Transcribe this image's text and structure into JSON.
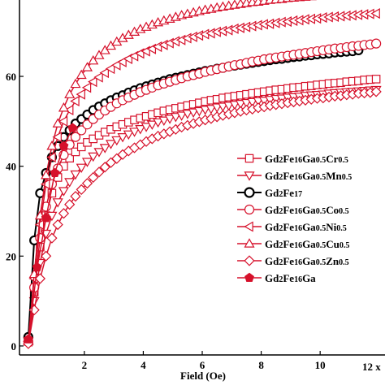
{
  "chart_data": {
    "type": "line",
    "title": "",
    "xlabel": "Field (Oe)",
    "x_multiplier_label": "12 x",
    "ylabel": "",
    "xlim": [
      -0.2,
      12.2
    ],
    "ylim": [
      -2,
      77
    ],
    "xticks": [
      2,
      4,
      6,
      8,
      10
    ],
    "yticks": [
      0,
      20,
      40,
      60
    ],
    "grid": false,
    "legend_position": "right",
    "colors": {
      "red": "#d6112b",
      "black": "#000000"
    },
    "series": [
      {
        "name": "Gd2Fe16Ga0.5Cr0.5",
        "legend": [
          [
            "Gd",
            ""
          ],
          [
            "2",
            "sub"
          ],
          [
            "Fe",
            ""
          ],
          [
            "16",
            "sub"
          ],
          [
            "Ga",
            ""
          ],
          [
            "0.5",
            "sub"
          ],
          [
            "Cr",
            ""
          ],
          [
            "0.5",
            "sub"
          ]
        ],
        "marker": "square",
        "color": "#d6112b",
        "filled": false,
        "x": [
          0.1,
          0.3,
          0.5,
          0.7,
          0.9,
          1.1,
          1.3,
          1.5,
          1.7,
          1.9,
          2.1,
          2.3,
          2.5,
          2.7,
          2.9,
          3.1,
          3.3,
          3.5,
          3.7,
          3.9,
          4.1,
          4.3,
          4.5,
          4.7,
          4.9,
          5.1,
          5.3,
          5.5,
          5.7,
          5.9,
          6.1,
          6.3,
          6.5,
          6.7,
          6.9,
          7.1,
          7.3,
          7.5,
          7.7,
          7.9,
          8.1,
          8.3,
          8.5,
          8.7,
          8.9,
          9.1,
          9.3,
          9.5,
          9.7,
          9.9,
          10.1,
          10.3,
          10.5,
          10.7,
          10.9,
          11.1,
          11.3,
          11.5,
          11.7,
          11.9
        ],
        "y": [
          1,
          12,
          22,
          29,
          34,
          37.5,
          40,
          41.8,
          43.2,
          44.3,
          45.3,
          46.1,
          46.9,
          47.6,
          48.2,
          48.8,
          49.3,
          49.8,
          50.3,
          50.7,
          51.1,
          51.5,
          51.9,
          52.3,
          52.6,
          52.9,
          53.2,
          53.5,
          53.8,
          54.1,
          54.4,
          54.7,
          54.9,
          55.2,
          55.4,
          55.6,
          55.8,
          56,
          56.2,
          56.4,
          56.6,
          56.8,
          57,
          57.1,
          57.3,
          57.5,
          57.6,
          57.8,
          57.9,
          58.1,
          58.2,
          58.4,
          58.5,
          58.6,
          58.8,
          58.9,
          59,
          59.2,
          59.3,
          59.4
        ]
      },
      {
        "name": "Gd2Fe16Ga0.5Mn0.5",
        "legend": [
          [
            "Gd",
            ""
          ],
          [
            "2",
            "sub"
          ],
          [
            "Fe",
            ""
          ],
          [
            "16",
            "sub"
          ],
          [
            "Ga",
            ""
          ],
          [
            "0.5",
            "sub"
          ],
          [
            "Mn",
            ""
          ],
          [
            "0.5",
            "sub"
          ]
        ],
        "marker": "triangle-down",
        "color": "#d6112b",
        "filled": false,
        "x": [
          0.1,
          0.3,
          0.5,
          0.7,
          0.9,
          1.1,
          1.3,
          1.5,
          1.7,
          1.9,
          2.1,
          2.3,
          2.5,
          2.7,
          2.9,
          3.1,
          3.3,
          3.5,
          3.7,
          3.9,
          4.1,
          4.3,
          4.5,
          4.7,
          4.9,
          5.1,
          5.3,
          5.5,
          5.7,
          5.9,
          6.1,
          6.3,
          6.5,
          6.7,
          6.9,
          7.1,
          7.3,
          7.5,
          7.7,
          7.9,
          8.1,
          8.3,
          8.5,
          8.7,
          8.9,
          9.1,
          9.3,
          9.5,
          9.7,
          9.9,
          10.1,
          10.3,
          10.5,
          10.7,
          10.9,
          11.1,
          11.3,
          11.5,
          11.7,
          11.9
        ],
        "y": [
          1,
          10,
          18.5,
          25,
          29,
          32,
          34.5,
          36.5,
          38.2,
          39.7,
          41,
          42.2,
          43.2,
          44.1,
          45,
          45.8,
          46.5,
          47.1,
          47.7,
          48.3,
          48.8,
          49.3,
          49.8,
          50.2,
          50.6,
          51,
          51.3,
          51.7,
          52,
          52.3,
          52.6,
          52.8,
          53.1,
          53.3,
          53.5,
          53.7,
          53.9,
          54.1,
          54.3,
          54.5,
          54.6,
          54.8,
          55,
          55.1,
          55.3,
          55.4,
          55.5,
          55.7,
          55.8,
          55.9,
          56,
          56.2,
          56.3,
          56.4,
          56.5,
          56.6,
          56.7,
          56.8,
          56.9,
          57
        ]
      },
      {
        "name": "Gd2Fe17",
        "legend": [
          [
            "Gd",
            ""
          ],
          [
            "2",
            "sub"
          ],
          [
            "Fe",
            ""
          ],
          [
            "17",
            "sub"
          ]
        ],
        "marker": "circle",
        "color": "#000000",
        "filled": false,
        "thick": true,
        "x": [
          0.1,
          0.3,
          0.5,
          0.7,
          0.9,
          1.1,
          1.3,
          1.5,
          1.7,
          1.9,
          2.1,
          2.3,
          2.5,
          2.7,
          2.9,
          3.1,
          3.3,
          3.5,
          3.7,
          3.9,
          4.1,
          4.3,
          4.5,
          4.7,
          4.9,
          5.1,
          5.3,
          5.5,
          5.7,
          5.9,
          6.1,
          6.3,
          6.5,
          6.7,
          6.9,
          7.1,
          7.3,
          7.5,
          7.7,
          7.9,
          8.1,
          8.3,
          8.5,
          8.7,
          8.9,
          9.1,
          9.3,
          9.5,
          9.7,
          9.9,
          10.1,
          10.3,
          10.5,
          10.7,
          10.9,
          11.1,
          11.3
        ],
        "y": [
          2,
          23.5,
          34,
          38.5,
          42,
          44.5,
          46.5,
          48,
          49.5,
          50.5,
          51.5,
          52.5,
          53.3,
          54,
          54.7,
          55.3,
          55.8,
          56.4,
          56.9,
          57.4,
          57.8,
          58.2,
          58.6,
          59,
          59.4,
          59.7,
          60,
          60.3,
          60.6,
          60.9,
          61.2,
          61.4,
          61.7,
          61.9,
          62.2,
          62.4,
          62.6,
          62.8,
          63,
          63.2,
          63.4,
          63.6,
          63.8,
          63.9,
          64.1,
          64.3,
          64.4,
          64.6,
          64.7,
          64.9,
          65,
          65.1,
          65.3,
          65.4,
          65.5,
          65.6,
          65.8
        ]
      },
      {
        "name": "Gd2Fe16Ga0.5Co0.5",
        "legend": [
          [
            "Gd",
            ""
          ],
          [
            "2",
            "sub"
          ],
          [
            "Fe",
            ""
          ],
          [
            "16",
            "sub"
          ],
          [
            "Ga",
            ""
          ],
          [
            "0.5",
            "sub"
          ],
          [
            "Co",
            ""
          ],
          [
            "0.5",
            "sub"
          ]
        ],
        "marker": "circle",
        "color": "#d6112b",
        "filled": false,
        "x": [
          0.1,
          0.3,
          0.5,
          0.7,
          0.9,
          1.1,
          1.3,
          1.5,
          1.7,
          1.9,
          2.1,
          2.3,
          2.5,
          2.7,
          2.9,
          3.1,
          3.3,
          3.5,
          3.7,
          3.9,
          4.1,
          4.3,
          4.5,
          4.7,
          4.9,
          5.1,
          5.3,
          5.5,
          5.7,
          5.9,
          6.1,
          6.3,
          6.5,
          6.7,
          6.9,
          7.1,
          7.3,
          7.5,
          7.7,
          7.9,
          8.1,
          8.3,
          8.5,
          8.7,
          8.9,
          9.1,
          9.3,
          9.5,
          9.7,
          9.9,
          10.1,
          10.3,
          10.5,
          10.7,
          10.9,
          11.1,
          11.3,
          11.5,
          11.7,
          11.9
        ],
        "y": [
          1,
          13,
          24,
          31,
          36,
          39.5,
          42.5,
          44.8,
          46.5,
          48,
          49.3,
          50.5,
          51.5,
          52.4,
          53.2,
          54,
          54.7,
          55.3,
          55.9,
          56.5,
          57,
          57.5,
          58,
          58.4,
          58.8,
          59.2,
          59.6,
          60,
          60.3,
          60.6,
          61,
          61.3,
          61.6,
          61.9,
          62.2,
          62.5,
          62.7,
          63,
          63.3,
          63.5,
          63.8,
          64,
          64.2,
          64.4,
          64.6,
          64.8,
          65,
          65.2,
          65.4,
          65.6,
          65.8,
          66,
          66.2,
          66.3,
          66.5,
          66.7,
          66.8,
          67,
          67.1,
          67.3
        ]
      },
      {
        "name": "Gd2Fe16Ga0.5Ni0.5",
        "legend": [
          [
            "Gd",
            ""
          ],
          [
            "2",
            "sub"
          ],
          [
            "Fe",
            ""
          ],
          [
            "16",
            "sub"
          ],
          [
            "Ga",
            ""
          ],
          [
            "0.5",
            "sub"
          ],
          [
            "Ni",
            ""
          ],
          [
            "0.5",
            "sub"
          ]
        ],
        "marker": "triangle-left",
        "color": "#d6112b",
        "filled": false,
        "x": [
          0.1,
          0.3,
          0.5,
          0.7,
          0.9,
          1.1,
          1.3,
          1.5,
          1.7,
          1.9,
          2.1,
          2.3,
          2.5,
          2.7,
          2.9,
          3.1,
          3.3,
          3.5,
          3.7,
          3.9,
          4.1,
          4.3,
          4.5,
          4.7,
          4.9,
          5.1,
          5.3,
          5.5,
          5.7,
          5.9,
          6.1,
          6.3,
          6.5,
          6.7,
          6.9,
          7.1,
          7.3,
          7.5,
          7.7,
          7.9,
          8.1,
          8.3,
          8.5,
          8.7,
          8.9,
          9.1,
          9.3,
          9.5,
          9.7,
          9.9,
          10.1,
          10.3,
          10.5,
          10.7,
          10.9,
          11.1,
          11.3,
          11.5,
          11.7,
          11.9
        ],
        "y": [
          1,
          15,
          27,
          36,
          42,
          46.5,
          50,
          52.5,
          54.5,
          56,
          57.5,
          58.8,
          59.8,
          60.8,
          61.7,
          62.5,
          63.2,
          63.9,
          64.5,
          65.1,
          65.6,
          66.1,
          66.6,
          67,
          67.4,
          67.8,
          68.1,
          68.5,
          68.8,
          69.1,
          69.4,
          69.6,
          69.9,
          70.1,
          70.3,
          70.6,
          70.8,
          71,
          71.2,
          71.4,
          71.6,
          71.7,
          71.9,
          72.1,
          72.2,
          72.4,
          72.5,
          72.7,
          72.8,
          72.9,
          73.1,
          73.2,
          73.3,
          73.4,
          73.5,
          73.6,
          73.7,
          73.8,
          73.9,
          74
        ]
      },
      {
        "name": "Gd2Fe16Ga0.5Cu0.5",
        "legend": [
          [
            "Gd",
            ""
          ],
          [
            "2",
            "sub"
          ],
          [
            "Fe",
            ""
          ],
          [
            "16",
            "sub"
          ],
          [
            "Ga",
            ""
          ],
          [
            "0.5",
            "sub"
          ],
          [
            "Cu",
            ""
          ],
          [
            "0.5",
            "sub"
          ]
        ],
        "marker": "triangle-up",
        "color": "#d6112b",
        "filled": false,
        "x": [
          0.1,
          0.3,
          0.5,
          0.7,
          0.9,
          1.1,
          1.3,
          1.5,
          1.7,
          1.9,
          2.1,
          2.3,
          2.5,
          2.7,
          2.9,
          3.1,
          3.3,
          3.5,
          3.7,
          3.9,
          4.1,
          4.3,
          4.5,
          4.7,
          4.9,
          5.1,
          5.3,
          5.5,
          5.7,
          5.9,
          6.1,
          6.3,
          6.5,
          6.7,
          6.9,
          7.1,
          7.3,
          7.5,
          7.7,
          7.9,
          8.1,
          8.3,
          8.5,
          8.7,
          8.9,
          9.1,
          9.3,
          9.5,
          9.7,
          9.9,
          10.1,
          10.3,
          10.5,
          10.7,
          10.9,
          11.1,
          11.3,
          11.5,
          11.7,
          11.9
        ],
        "y": [
          1,
          16,
          29,
          38,
          44.5,
          49.5,
          53,
          56,
          58.3,
          60.3,
          62,
          63.5,
          64.7,
          65.8,
          66.8,
          67.7,
          68.5,
          69.2,
          69.9,
          70.5,
          71,
          71.5,
          72,
          72.4,
          72.8,
          73.2,
          73.6,
          73.9,
          74.2,
          74.5,
          74.8,
          75,
          75.3,
          75.5,
          75.7,
          75.9,
          76.1,
          76.3,
          76.5,
          76.6,
          76.8,
          77,
          77.1,
          77.2,
          77.4,
          77.5,
          77.6,
          77.7,
          77.8,
          77.9,
          78,
          78.1,
          78.2,
          78.3,
          78.4,
          78.5,
          78.5,
          78.6,
          78.7,
          78.8
        ]
      },
      {
        "name": "Gd2Fe16Ga0.5Zn0.5",
        "legend": [
          [
            "Gd",
            ""
          ],
          [
            "2",
            "sub"
          ],
          [
            "Fe",
            ""
          ],
          [
            "16",
            "sub"
          ],
          [
            "Ga",
            ""
          ],
          [
            "0.5",
            "sub"
          ],
          [
            "Zn",
            ""
          ],
          [
            "0.5",
            "sub"
          ]
        ],
        "marker": "diamond",
        "color": "#d6112b",
        "filled": false,
        "x": [
          0.1,
          0.3,
          0.5,
          0.7,
          0.9,
          1.1,
          1.3,
          1.5,
          1.7,
          1.9,
          2.1,
          2.3,
          2.5,
          2.7,
          2.9,
          3.1,
          3.3,
          3.5,
          3.7,
          3.9,
          4.1,
          4.3,
          4.5,
          4.7,
          4.9,
          5.1,
          5.3,
          5.5,
          5.7,
          5.9,
          6.1,
          6.3,
          6.5,
          6.7,
          6.9,
          7.1,
          7.3,
          7.5,
          7.7,
          7.9,
          8.1,
          8.3,
          8.5,
          8.7,
          8.9,
          9.1,
          9.3,
          9.5,
          9.7,
          9.9,
          10.1,
          10.3,
          10.5,
          10.7,
          10.9,
          11.1,
          11.3,
          11.5,
          11.7,
          11.9
        ],
        "y": [
          0.5,
          8,
          15,
          20,
          24,
          27,
          29.5,
          31.5,
          33.3,
          34.8,
          36.2,
          37.5,
          38.7,
          39.8,
          40.8,
          41.7,
          42.6,
          43.4,
          44.1,
          44.8,
          45.5,
          46.1,
          46.7,
          47.2,
          47.7,
          48.2,
          48.7,
          49.1,
          49.5,
          49.9,
          50.3,
          50.6,
          51,
          51.3,
          51.6,
          51.9,
          52.2,
          52.5,
          52.7,
          53,
          53.2,
          53.5,
          53.7,
          53.9,
          54.1,
          54.3,
          54.5,
          54.7,
          54.9,
          55.1,
          55.2,
          55.4,
          55.6,
          55.7,
          55.9,
          56,
          56.2,
          56.3,
          56.4,
          56.6
        ]
      },
      {
        "name": "Gd2Fe16Ga",
        "legend": [
          [
            "Gd",
            ""
          ],
          [
            "2",
            "sub"
          ],
          [
            "Fe",
            ""
          ],
          [
            "16",
            "sub"
          ],
          [
            "Ga",
            ""
          ]
        ],
        "marker": "pentagon",
        "color": "#d6112b",
        "filled": true,
        "x": [
          0.1,
          0.4,
          0.7,
          1.0,
          1.3,
          1.6
        ],
        "y": [
          1.5,
          17.5,
          28.5,
          38.5,
          44.5,
          48.5
        ]
      }
    ]
  }
}
